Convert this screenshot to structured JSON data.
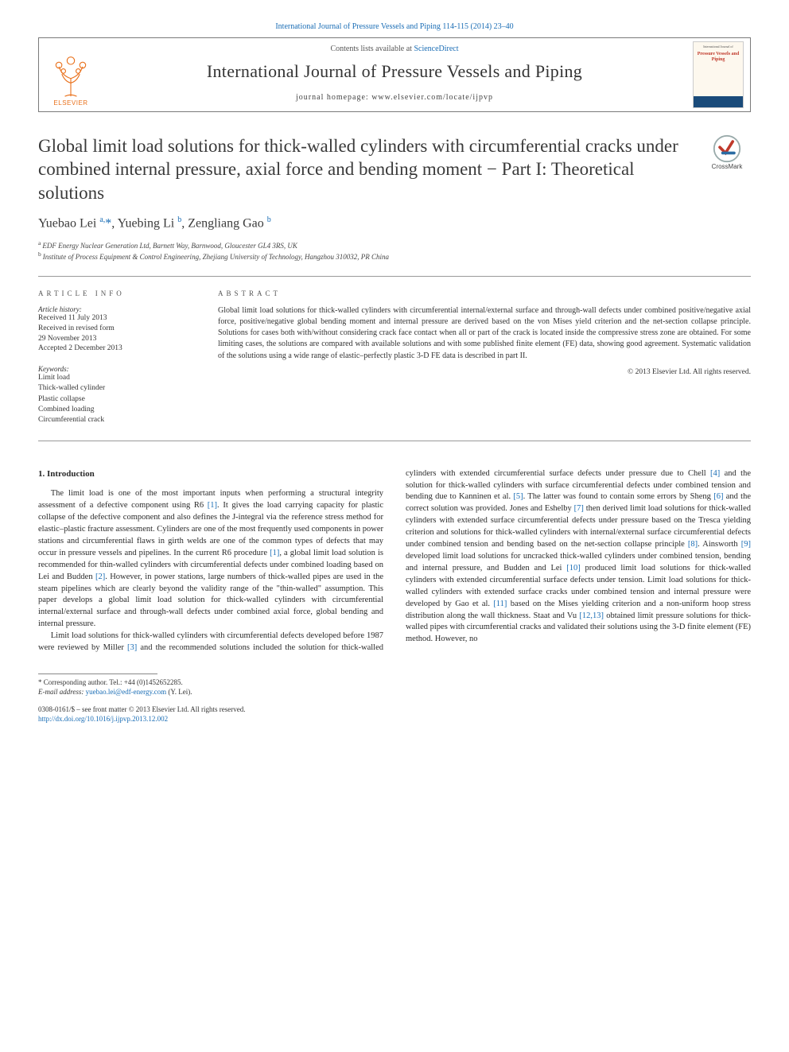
{
  "colors": {
    "link": "#1a6db5",
    "elsevier_orange": "#e9711c",
    "text": "#2a2a2a",
    "muted": "#555",
    "rule": "#999"
  },
  "header": {
    "top_link_prefix": "International Journal of Pressure Vessels and Piping 114-115 (2014) 23–40",
    "contents_prefix": "Contents lists available at ",
    "contents_link": "ScienceDirect",
    "journal_name": "International Journal of Pressure Vessels and Piping",
    "homepage_label": "journal homepage: www.elsevier.com/locate/ijpvp",
    "publisher": "ELSEVIER",
    "cover_title": "Pressure Vessels and Piping"
  },
  "crossmark": {
    "label": "CrossMark"
  },
  "title": "Global limit load solutions for thick-walled cylinders with circumferential cracks under combined internal pressure, axial force and bending moment − Part I: Theoretical solutions",
  "authors_html": "Yuebao Lei <sup>a,</sup><span class='ast'>*</span>, Yuebing Li <sup>b</sup>, Zengliang Gao <sup>b</sup>",
  "affiliations": [
    {
      "key": "a",
      "text": "EDF Energy Nuclear Generation Ltd, Barnett Way, Barnwood, Gloucester GL4 3RS, UK"
    },
    {
      "key": "b",
      "text": "Institute of Process Equipment & Control Engineering, Zhejiang University of Technology, Hangzhou 310032, PR China"
    }
  ],
  "article_info": {
    "heading": "ARTICLE INFO",
    "history_label": "Article history:",
    "history": [
      "Received 11 July 2013",
      "Received in revised form",
      "29 November 2013",
      "Accepted 2 December 2013"
    ],
    "keywords_label": "Keywords:",
    "keywords": [
      "Limit load",
      "Thick-walled cylinder",
      "Plastic collapse",
      "Combined loading",
      "Circumferential crack"
    ]
  },
  "abstract": {
    "heading": "ABSTRACT",
    "text": "Global limit load solutions for thick-walled cylinders with circumferential internal/external surface and through-wall defects under combined positive/negative axial force, positive/negative global bending moment and internal pressure are derived based on the von Mises yield criterion and the net-section collapse principle. Solutions for cases both with/without considering crack face contact when all or part of the crack is located inside the compressive stress zone are obtained. For some limiting cases, the solutions are compared with available solutions and with some published finite element (FE) data, showing good agreement. Systematic validation of the solutions using a wide range of elastic–perfectly plastic 3-D FE data is described in part II.",
    "copyright": "© 2013 Elsevier Ltd. All rights reserved."
  },
  "section1": {
    "heading": "1. Introduction"
  },
  "body": {
    "p1": "The limit load is one of the most important inputs when performing a structural integrity assessment of a defective component using R6 [1]. It gives the load carrying capacity for plastic collapse of the defective component and also defines the J-integral via the reference stress method for elastic–plastic fracture assessment. Cylinders are one of the most frequently used components in power stations and circumferential flaws in girth welds are one of the common types of defects that may occur in pressure vessels and pipelines. In the current R6 procedure [1], a global limit load solution is recommended for thin-walled cylinders with circumferential defects under combined loading based on Lei and Budden [2]. However, in power stations, large numbers of thick-walled pipes are used in the steam pipelines which are clearly beyond the validity range of the \"thin-walled\" assumption. This paper develops a global limit load solution for thick-walled cylinders with circumferential internal/external surface and through-wall defects under combined axial force, global bending and internal pressure.",
    "p2": "Limit load solutions for thick-walled cylinders with circumferential defects developed before 1987 were reviewed by Miller [3] and the recommended solutions included the solution for thick-walled cylinders with extended circumferential surface defects under pressure due to Chell [4] and the solution for thick-walled cylinders with surface circumferential defects under combined tension and bending due to Kanninen et al. [5]. The latter was found to contain some errors by Sheng [6] and the correct solution was provided. Jones and Eshelby [7] then derived limit load solutions for thick-walled cylinders with extended surface circumferential defects under pressure based on the Tresca yielding criterion and solutions for thick-walled cylinders with internal/external surface circumferential defects under combined tension and bending based on the net-section collapse principle [8]. Ainsworth [9] developed limit load solutions for uncracked thick-walled cylinders under combined tension, bending and internal pressure, and Budden and Lei [10] produced limit load solutions for thick-walled cylinders with extended circumferential surface defects under tension. Limit load solutions for thick-walled cylinders with extended surface cracks under combined tension and internal pressure were developed by Gao et al. [11] based on the Mises yielding criterion and a non-uniform hoop stress distribution along the wall thickness. Staat and Vu [12,13] obtained limit pressure solutions for thick-walled pipes with circumferential cracks and validated their solutions using the 3-D finite element (FE) method. However, no"
  },
  "footnote": {
    "corr_label": "* Corresponding author. Tel.: +44 (0)1452652285.",
    "email_label": "E-mail address: ",
    "email": "yuebao.lei@edf-energy.com",
    "email_suffix": " (Y. Lei)."
  },
  "doi": {
    "line1": "0308-0161/$ – see front matter © 2013 Elsevier Ltd. All rights reserved.",
    "link": "http://dx.doi.org/10.1016/j.ijpvp.2013.12.002"
  }
}
